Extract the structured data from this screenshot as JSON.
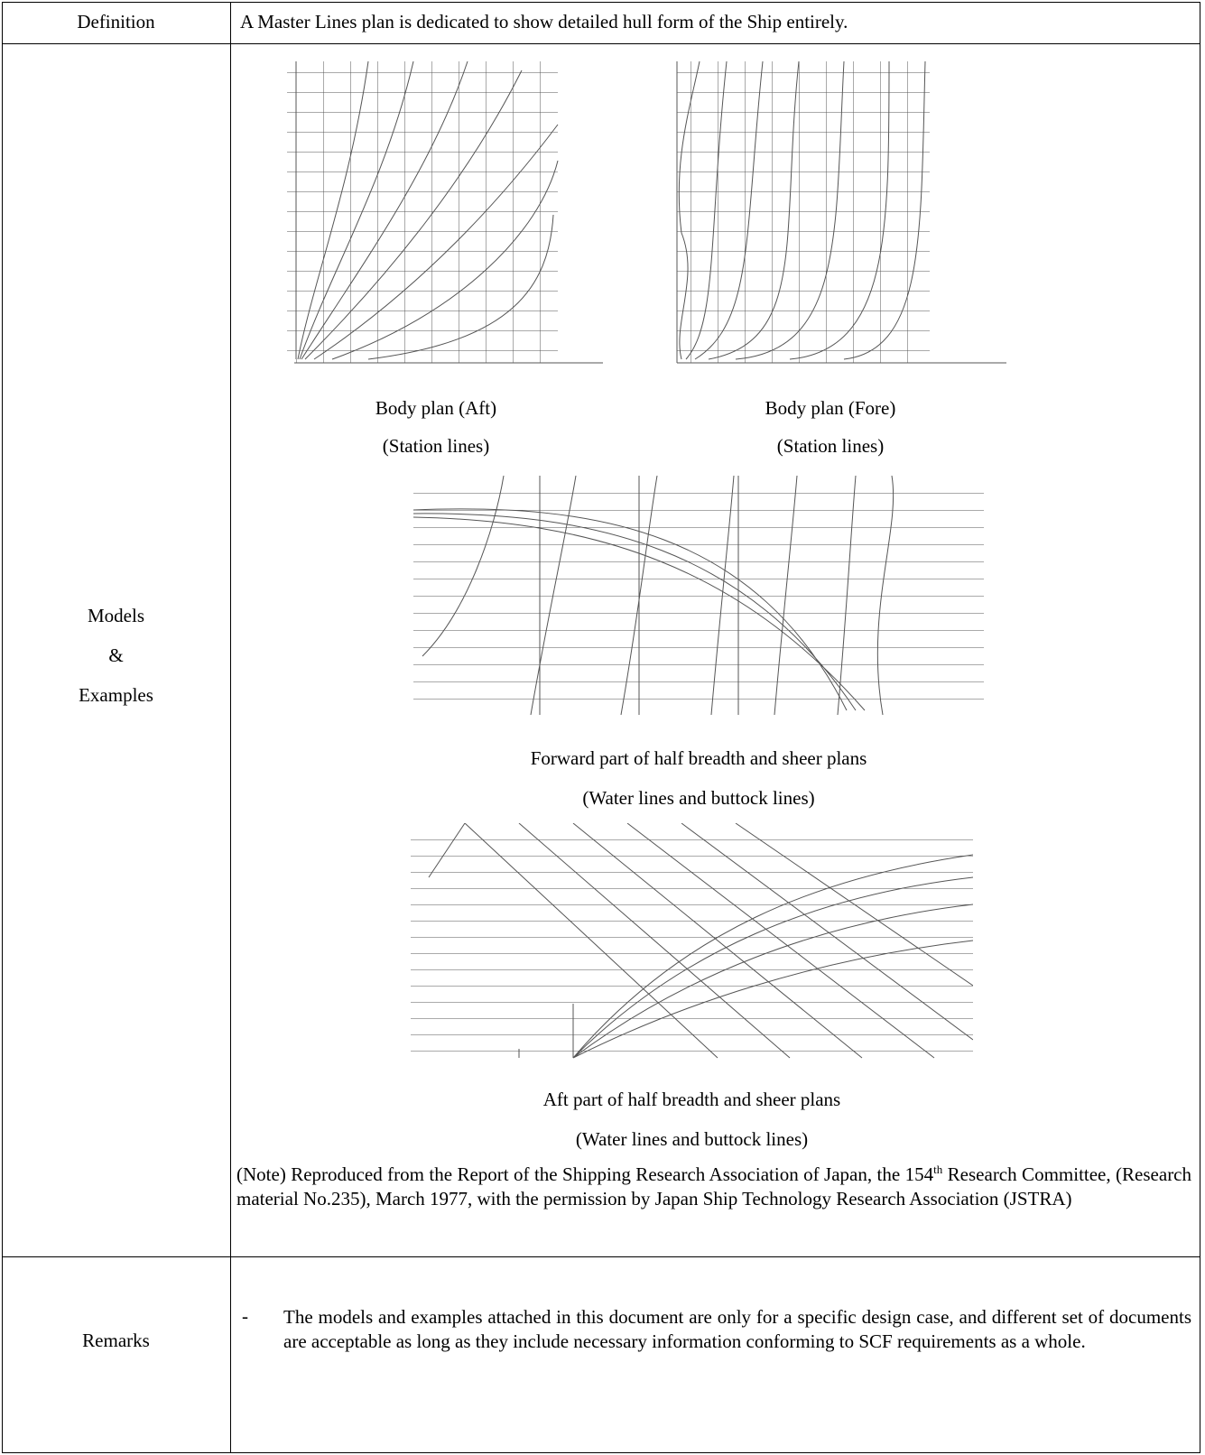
{
  "definition": {
    "label": "Definition",
    "text": "A Master Lines plan is dedicated to show detailed hull form of the Ship entirely."
  },
  "models": {
    "label_lines": [
      "Models",
      "&",
      "Examples"
    ],
    "figures": [
      {
        "caption": "Body plan (Aft)",
        "subcaption": "(Station lines)"
      },
      {
        "caption": "Body plan (Fore)",
        "subcaption": "(Station lines)"
      },
      {
        "caption": "Forward part of half breadth and sheer plans",
        "subcaption": "(Water lines and buttock lines)"
      },
      {
        "caption": "Aft part of half breadth and sheer plans",
        "subcaption": "(Water lines and buttock lines)"
      }
    ],
    "note": {
      "before": "(Note) Reproduced from the Report of the Shipping Research Association of Japan, the 154",
      "sup": "th",
      "after": " Research Committee, (Research material No.235), March 1977, with the permission by Japan Ship Technology Research Association (JSTRA)"
    }
  },
  "remarks": {
    "label": "Remarks",
    "bullet": "-",
    "text": "The models and examples attached in this document are only for a specific design case, and different set of documents are acceptable as long as they include necessary information conforming to SCF requirements as a whole."
  }
}
